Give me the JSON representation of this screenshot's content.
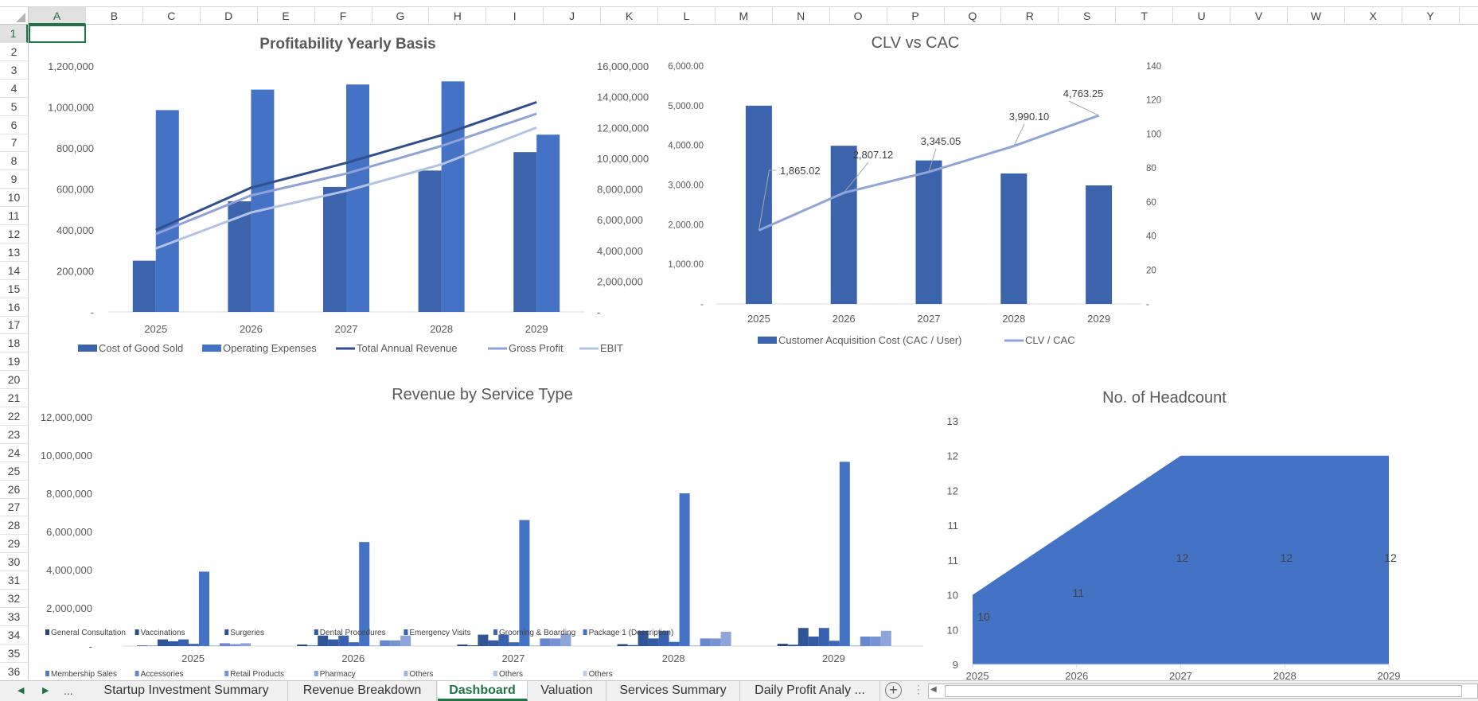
{
  "sheet": {
    "columns": [
      "A",
      "B",
      "C",
      "D",
      "E",
      "F",
      "G",
      "H",
      "I",
      "J",
      "K",
      "L",
      "M",
      "N",
      "O",
      "P",
      "Q",
      "R",
      "S",
      "T",
      "U",
      "V",
      "W",
      "X",
      "Y"
    ],
    "rows": [
      "1",
      "2",
      "3",
      "4",
      "5",
      "6",
      "7",
      "8",
      "9",
      "10",
      "11",
      "12",
      "13",
      "14",
      "15",
      "16",
      "17",
      "18",
      "19",
      "20",
      "21",
      "22",
      "23",
      "24",
      "25",
      "26",
      "27",
      "28",
      "29",
      "30",
      "31",
      "32",
      "33",
      "34",
      "35",
      "36"
    ],
    "selected_cell": "A1"
  },
  "tabs": {
    "nav_more": "...",
    "items": [
      "Startup Investment Summary",
      "Revenue Breakdown",
      "Dashboard",
      "Valuation",
      "Services Summary",
      "Daily Profit Analy ..."
    ],
    "active": "Dashboard",
    "add_icon": "plus-circle-icon",
    "options_icon": "vertical-dots-icon"
  },
  "colors": {
    "accent": "#217346",
    "bar_dark": "#3c64ad",
    "bar": "#4472c4"
  },
  "chart_data": [
    {
      "type": "bar+line",
      "title": "Profitability Yearly Basis",
      "categories": [
        "2025",
        "2026",
        "2027",
        "2028",
        "2029"
      ],
      "ylim": [
        0,
        1200000
      ],
      "yticks": [
        "-",
        "200,000",
        "400,000",
        "600,000",
        "800,000",
        "1,000,000",
        "1,200,000"
      ],
      "y2lim": [
        0,
        16000000
      ],
      "y2ticks": [
        "-",
        "2,000,000",
        "4,000,000",
        "6,000,000",
        "8,000,000",
        "10,000,000",
        "12,000,000",
        "14,000,000",
        "16,000,000"
      ],
      "legend": "bottom",
      "series": [
        {
          "name": "Cost of Good Sold",
          "kind": "bar",
          "axis": "left",
          "color": "#3c64ad",
          "values": [
            250000,
            540000,
            610000,
            690000,
            780000
          ]
        },
        {
          "name": "Operating Expenses",
          "kind": "bar",
          "axis": "left",
          "color": "#4472c4",
          "values": [
            985000,
            1085000,
            1110000,
            1125000,
            865000
          ]
        },
        {
          "name": "Total Annual Revenue",
          "kind": "line",
          "axis": "right",
          "color": "#2f4f8f",
          "values": [
            5330000,
            8080000,
            9700000,
            11500000,
            13650000
          ]
        },
        {
          "name": "Gross Profit",
          "kind": "line",
          "axis": "right",
          "color": "#8ea2d8",
          "values": [
            5070000,
            7580000,
            9000000,
            10800000,
            12900000
          ]
        },
        {
          "name": "EBIT",
          "kind": "line",
          "axis": "right",
          "color": "#b4c3e5",
          "values": [
            4130000,
            6470000,
            7880000,
            9600000,
            12000000
          ]
        }
      ]
    },
    {
      "type": "bar+line",
      "title": "CLV vs CAC",
      "categories": [
        "2025",
        "2026",
        "2027",
        "2028",
        "2029"
      ],
      "ylim": [
        0,
        6000
      ],
      "yticks": [
        "-",
        "1,000.00",
        "2,000.00",
        "3,000.00",
        "4,000.00",
        "5,000.00",
        "6,000.00"
      ],
      "y2lim": [
        0,
        140
      ],
      "y2ticks": [
        "-",
        "20",
        "40",
        "60",
        "80",
        "100",
        "120",
        "140"
      ],
      "legend": "bottom",
      "series": [
        {
          "name": "Customer Acquisition  Cost (CAC / User)",
          "kind": "bar",
          "axis": "left",
          "color": "#3c64ad",
          "values": [
            5000,
            3990,
            3620,
            3290,
            2990
          ]
        },
        {
          "name": "CLV / CAC",
          "kind": "line",
          "axis": "right",
          "color": "#8fa4d9",
          "values": [
            43.3,
            65.4,
            77.7,
            92.9,
            110.9
          ],
          "data_labels": [
            "1,865.02",
            "2,807.12",
            "3,345.05",
            "3,990.10",
            "4,763.25"
          ]
        }
      ]
    },
    {
      "type": "bar",
      "title": "Revenue by Service Type",
      "categories": [
        "2025",
        "2026",
        "2027",
        "2028",
        "2029"
      ],
      "ylim": [
        0,
        12000000
      ],
      "yticks": [
        "-",
        "2,000,000",
        "4,000,000",
        "6,000,000",
        "8,000,000",
        "10,000,000",
        "12,000,000"
      ],
      "legend": "bottom",
      "series": [
        {
          "name": "General Consultation",
          "color": "#264478",
          "values": [
            30000,
            80000,
            80000,
            100000,
            120000
          ]
        },
        {
          "name": "Vaccinations",
          "color": "#2b4d88",
          "values": [
            20000,
            30000,
            40000,
            50000,
            70000
          ]
        },
        {
          "name": "Surgeries",
          "color": "#2f5597",
          "values": [
            350000,
            550000,
            600000,
            800000,
            950000
          ]
        },
        {
          "name": "Dental Procedures",
          "color": "#335aa3",
          "values": [
            250000,
            350000,
            300000,
            400000,
            500000
          ]
        },
        {
          "name": "Emergency Visits",
          "color": "#3861b0",
          "values": [
            350000,
            550000,
            600000,
            800000,
            950000
          ]
        },
        {
          "name": "Grooming & Boarding",
          "color": "#3d69bb",
          "values": [
            120000,
            200000,
            200000,
            220000,
            280000
          ]
        },
        {
          "name": "Package 1 (Description)",
          "color": "#4472c4",
          "values": [
            3900000,
            5450000,
            6600000,
            8000000,
            9650000
          ]
        },
        {
          "name": "Membership Sales",
          "color": "#4f7bc8",
          "values": [
            20000,
            20000,
            20000,
            20000,
            20000
          ]
        },
        {
          "name": "Accessories",
          "color": "#6787cf",
          "values": [
            150000,
            300000,
            400000,
            400000,
            500000
          ]
        },
        {
          "name": "Retail Products",
          "color": "#7893d3",
          "values": [
            100000,
            300000,
            400000,
            400000,
            500000
          ]
        },
        {
          "name": "Pharmacy",
          "color": "#8ea5db",
          "values": [
            150000,
            550000,
            650000,
            750000,
            800000
          ]
        },
        {
          "name": "Others",
          "color": "#a3b5e1",
          "values": [
            0,
            0,
            0,
            0,
            0
          ]
        },
        {
          "name": "Others",
          "color": "#b3c2e7",
          "values": [
            0,
            0,
            0,
            0,
            0
          ]
        },
        {
          "name": "Others",
          "color": "#c2cfec",
          "values": [
            0,
            0,
            0,
            0,
            0
          ]
        }
      ]
    },
    {
      "type": "area",
      "title": "No. of Headcount",
      "categories": [
        "2025",
        "2026",
        "2027",
        "2028",
        "2029"
      ],
      "ylim": [
        9,
        12.5
      ],
      "yticks": [
        "9",
        "10",
        "10",
        "11",
        "11",
        "12",
        "12",
        "13"
      ],
      "color": "#4472c4",
      "values": [
        10,
        11,
        12,
        12,
        12
      ],
      "data_labels": [
        "10",
        "11",
        "12",
        "12",
        "12"
      ]
    }
  ]
}
